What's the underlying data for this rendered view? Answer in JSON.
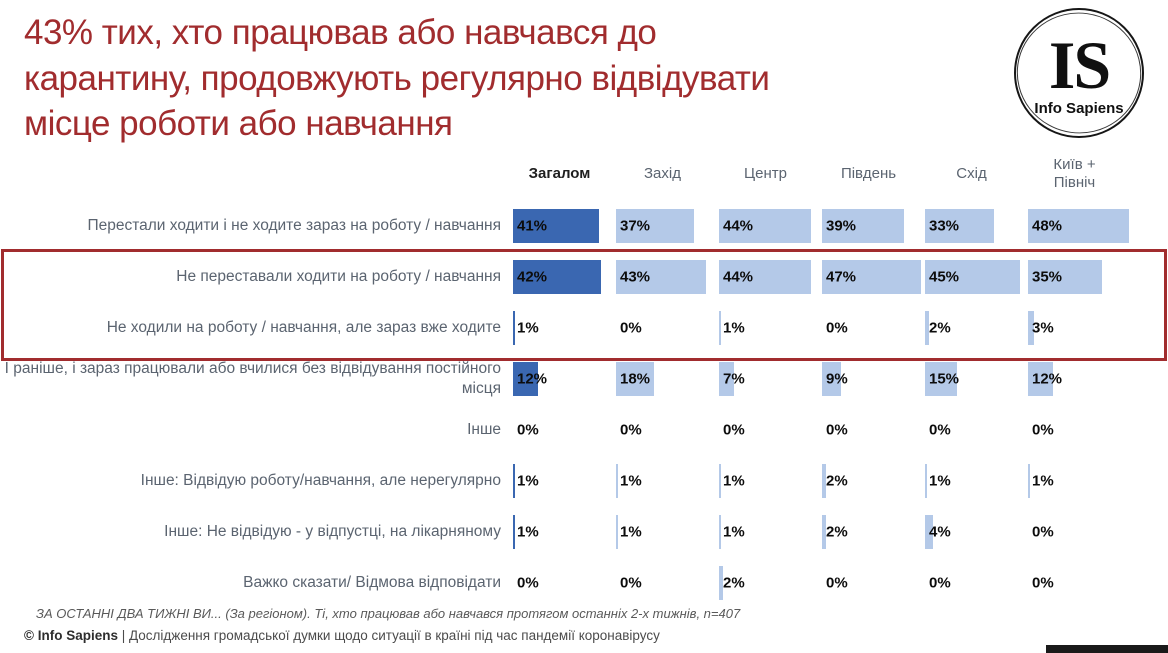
{
  "title": {
    "lines": [
      "43% тих, хто працював або навчався до",
      "карантину, продовжують регулярно відвідувати",
      "місце роботи або навчання"
    ]
  },
  "logo": {
    "monogram": "IS",
    "name": "Info Sapiens"
  },
  "chart_data": {
    "type": "bar",
    "orientation": "horizontal",
    "title": "43% тих, хто працював або навчався до карантину, продовжують регулярно відвідувати місце роботи або навчання",
    "columns": [
      "Загалом",
      "Захід",
      "Центр",
      "Південь",
      "Схід",
      "Київ + Північ"
    ],
    "value_suffix": "%",
    "xlim": [
      0,
      48
    ],
    "rows": [
      {
        "label": "Перестали ходити і не ходите зараз на роботу / навчання",
        "values": [
          41,
          37,
          44,
          39,
          33,
          48
        ],
        "highlighted": false
      },
      {
        "label": "Не переставали ходити на роботу / навчання",
        "values": [
          42,
          43,
          44,
          47,
          45,
          35
        ],
        "highlighted": true
      },
      {
        "label": "Не ходили на роботу / навчання, але зараз вже ходите",
        "values": [
          1,
          0,
          1,
          0,
          2,
          3
        ],
        "highlighted": true
      },
      {
        "label": "І раніше, і зараз працювали або вчилися без відвідування постійного місця",
        "values": [
          12,
          18,
          7,
          9,
          15,
          12
        ],
        "highlighted": false
      },
      {
        "label": "Інше",
        "values": [
          0,
          0,
          0,
          0,
          0,
          0
        ],
        "highlighted": false
      },
      {
        "label": "Інше: Відвідую роботу/навчання, але нерегулярно",
        "values": [
          1,
          1,
          1,
          2,
          1,
          1
        ],
        "highlighted": false
      },
      {
        "label": "Інше: Не відвідую - у відпустці, на лікарняному",
        "values": [
          1,
          1,
          1,
          2,
          4,
          0
        ],
        "highlighted": false
      },
      {
        "label": "Важко сказати/ Відмова відповідати",
        "values": [
          0,
          0,
          2,
          0,
          0,
          0
        ],
        "highlighted": false
      }
    ],
    "colors": {
      "total_bar": "#3a67b1",
      "region_bar": "#b4c9e8",
      "highlight_border": "#a12c2e",
      "title_text": "#a12c2e"
    },
    "legend": "none",
    "grid": false
  },
  "footnotes": {
    "line1": "ЗА ОСТАННІ ДВА ТИЖНІ ВИ... (За регіоном). Ті, хто працював або навчався протягом останніх 2-х тижнів, n=407",
    "line2_bold": "© Info Sapiens",
    "line2_rest": " | Дослідження громадської думки щодо ситуації в країні під час пандемії коронавірусу"
  }
}
